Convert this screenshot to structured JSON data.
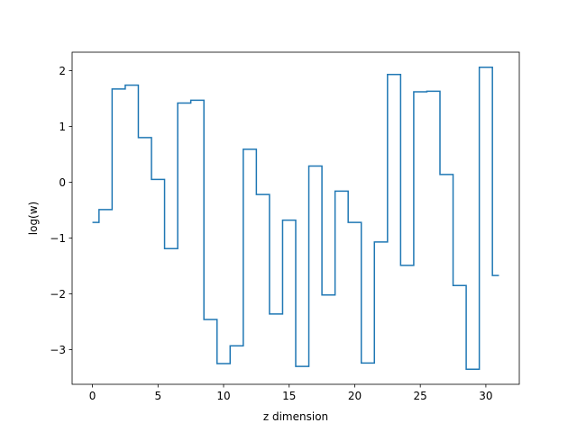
{
  "chart_data": {
    "type": "line",
    "drawstyle": "steps-mid",
    "title": "",
    "xlabel": "z dimension",
    "ylabel": "log(w)",
    "xlim": [
      -1.55,
      32.55
    ],
    "ylim": [
      -3.62,
      2.33
    ],
    "xticks": [
      0,
      5,
      10,
      15,
      20,
      25,
      30
    ],
    "yticks": [
      -3,
      -2,
      -1,
      0,
      1,
      2
    ],
    "grid": false,
    "legend": "none",
    "line_color": "#1f77b4",
    "series": [
      {
        "x": [
          0,
          1,
          2,
          3,
          4,
          5,
          6,
          7,
          8,
          9,
          10,
          11,
          12,
          13,
          14,
          15,
          16,
          17,
          18,
          19,
          20,
          21,
          22,
          23,
          24,
          25,
          26,
          27,
          28,
          29,
          30,
          31
        ],
        "values": [
          -0.72,
          -0.49,
          1.67,
          1.74,
          0.8,
          0.05,
          -1.19,
          1.42,
          1.47,
          -2.46,
          -3.25,
          -2.93,
          0.59,
          -0.22,
          -2.36,
          -0.68,
          -3.3,
          0.29,
          -2.02,
          -0.16,
          -0.72,
          -3.24,
          -1.07,
          1.93,
          -1.49,
          1.62,
          1.63,
          0.14,
          -1.85,
          -3.35,
          2.06,
          -1.67
        ]
      }
    ]
  }
}
